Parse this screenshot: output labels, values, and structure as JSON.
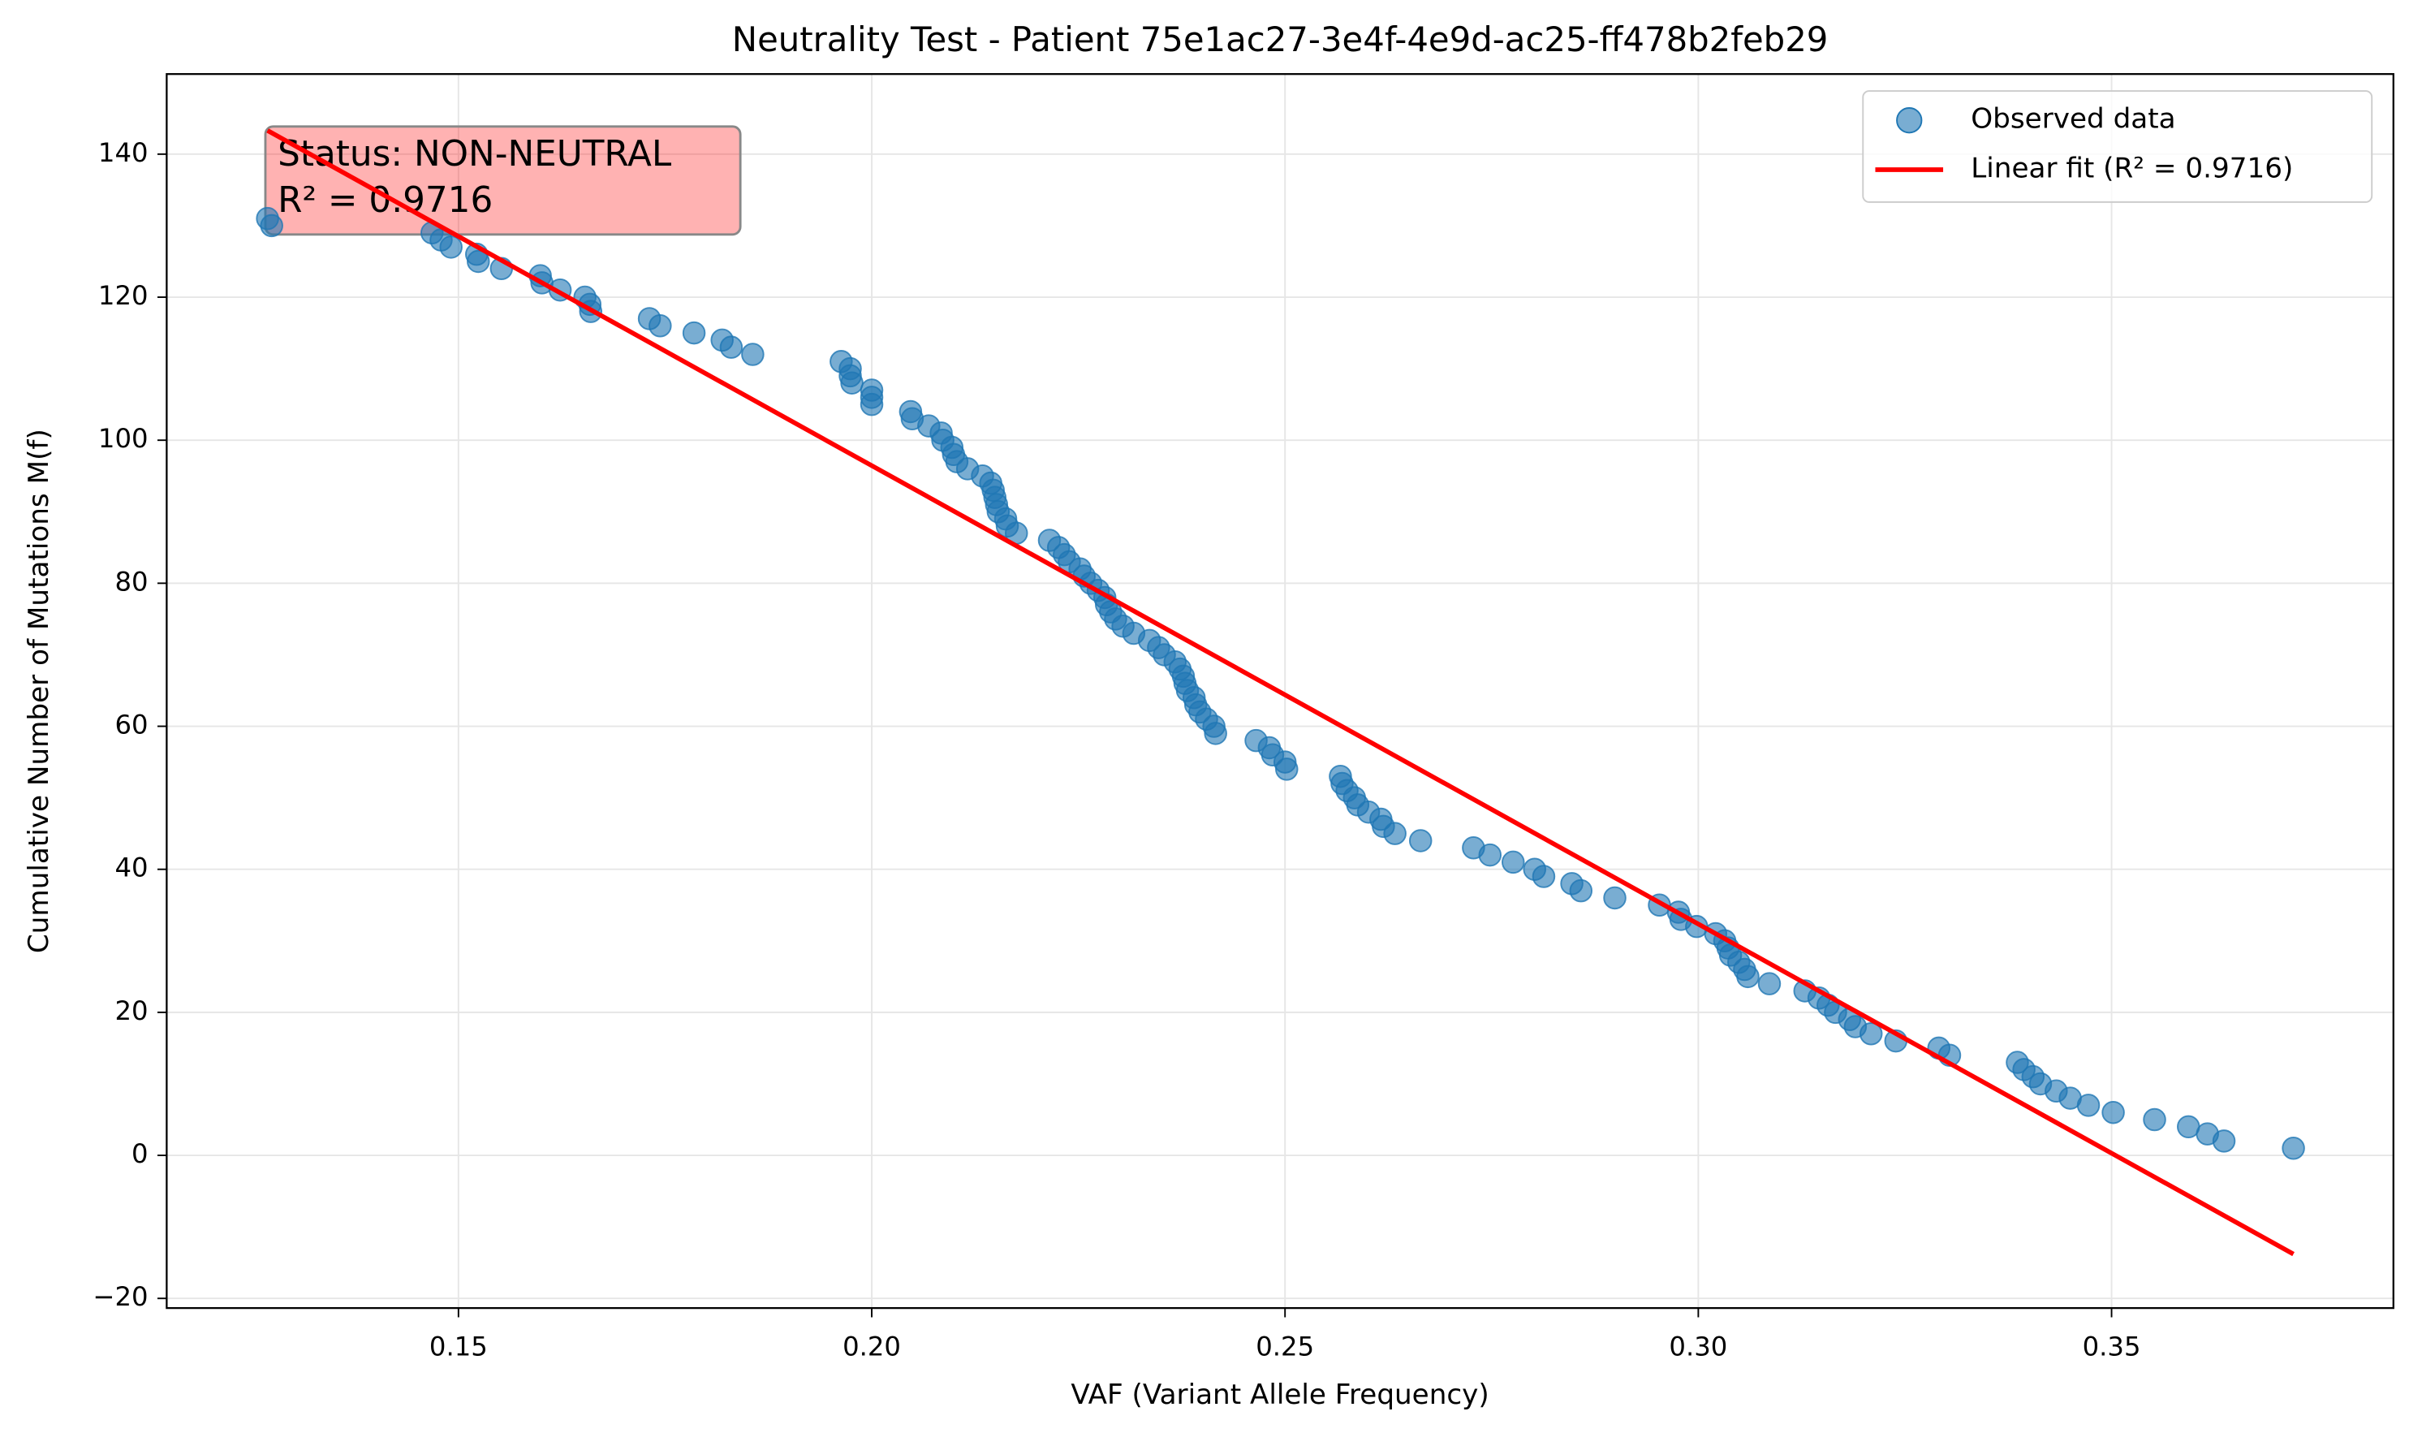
{
  "chart_data": {
    "type": "scatter",
    "title": "Neutrality Test - Patient 75e1ac27-3e4f-4e9d-ac25-ff478b2feb29",
    "xlabel": "VAF (Variant Allele Frequency)",
    "ylabel": "Cumulative Number of Mutations M(f)",
    "xlim": [
      0.1147,
      0.3841
    ],
    "ylim": [
      -21.35,
      151.2
    ],
    "xticks": [
      0.15,
      {
        "value": 0.2,
        "label": "0.20"
      },
      0.25,
      {
        "value": 0.3,
        "label": "0.30"
      },
      0.35
    ],
    "yticks": [
      {
        "value": -20,
        "label": "−20"
      },
      0,
      20,
      40,
      60,
      80,
      100,
      120,
      140
    ],
    "grid": true,
    "legend": "upper right",
    "series": [
      {
        "name": "Observed data",
        "color": "#1f77b4",
        "x": [
          0.1269,
          0.1274,
          0.1468,
          0.1479,
          0.1491,
          0.1522,
          0.1524,
          0.1552,
          0.1599,
          0.1601,
          0.1623,
          0.1653,
          0.1659,
          0.166,
          0.1731,
          0.1744,
          0.1785,
          0.1819,
          0.183,
          0.1856,
          0.1963,
          0.1974,
          0.1974,
          0.1976,
          0.2,
          0.2,
          0.2,
          0.2047,
          0.2049,
          0.2069,
          0.2084,
          0.2086,
          0.2097,
          0.2099,
          0.2103,
          0.2116,
          0.2134,
          0.2144,
          0.2147,
          0.2149,
          0.2151,
          0.2153,
          0.2162,
          0.2164,
          0.2175,
          0.2215,
          0.2226,
          0.2233,
          0.2239,
          0.2252,
          0.2257,
          0.2265,
          0.2274,
          0.2282,
          0.2284,
          0.2289,
          0.2295,
          0.2304,
          0.2317,
          0.2336,
          0.2347,
          0.2354,
          0.2367,
          0.2373,
          0.2377,
          0.2379,
          0.2382,
          0.239,
          0.2392,
          0.2397,
          0.2405,
          0.2414,
          0.2416,
          0.2465,
          0.2481,
          0.2485,
          0.25,
          0.2502,
          0.2567,
          0.2569,
          0.2575,
          0.2584,
          0.2588,
          0.2601,
          0.2616,
          0.2619,
          0.2633,
          0.2664,
          0.2728,
          0.2748,
          0.2776,
          0.2802,
          0.2813,
          0.2847,
          0.2858,
          0.2899,
          0.2953,
          0.2976,
          0.2979,
          0.2998,
          0.3021,
          0.3032,
          0.3036,
          0.3039,
          0.3049,
          0.3056,
          0.306,
          0.3086,
          0.3129,
          0.3146,
          0.3157,
          0.3166,
          0.3183,
          0.319,
          0.3209,
          0.3239,
          0.3291,
          0.3304,
          0.3386,
          0.3394,
          0.3405,
          0.3414,
          0.3433,
          0.345,
          0.3472,
          0.3502,
          0.3552,
          0.3593,
          0.3616,
          0.3636,
          0.372
        ],
        "values": [
          131,
          130,
          129,
          128,
          127,
          126,
          125,
          124,
          123,
          122,
          121,
          120,
          119,
          118,
          117,
          116,
          115,
          114,
          113,
          112,
          111,
          110,
          109,
          108,
          107,
          106,
          105,
          104,
          103,
          102,
          101,
          100,
          99,
          98,
          97,
          96,
          95,
          94,
          93,
          92,
          91,
          90,
          89,
          88,
          87,
          86,
          85,
          84,
          83,
          82,
          81,
          80,
          79,
          78,
          77,
          76,
          75,
          74,
          73,
          72,
          71,
          70,
          69,
          68,
          67,
          66,
          65,
          64,
          63,
          62,
          61,
          60,
          59,
          58,
          57,
          56,
          55,
          54,
          53,
          52,
          51,
          50,
          49,
          48,
          47,
          46,
          45,
          44,
          43,
          42,
          41,
          40,
          39,
          38,
          37,
          36,
          35,
          34,
          33,
          32,
          31,
          30,
          29,
          28,
          27,
          26,
          25,
          24,
          23,
          22,
          21,
          20,
          19,
          18,
          17,
          16,
          15,
          14,
          13,
          12,
          11,
          10,
          9,
          8,
          7,
          6,
          5,
          4,
          3,
          2,
          1
        ]
      },
      {
        "name": "Linear fit (R² = 0.9716)",
        "type": "line",
        "color": "#ff0000",
        "x": [
          0.1269,
          0.372
        ],
        "values": [
          143.3,
          -13.8
        ]
      }
    ],
    "annotation": {
      "lines": [
        "Status: NON-NEUTRAL",
        "R² = 0.9716"
      ]
    }
  }
}
